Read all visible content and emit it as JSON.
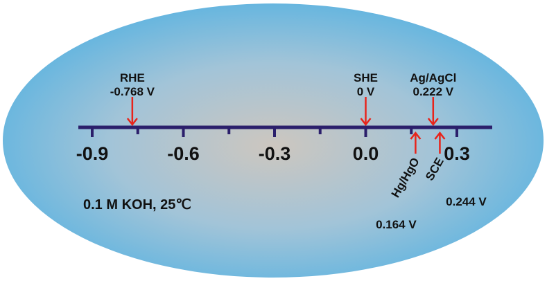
{
  "scale": {
    "ticks": [
      {
        "value": -0.9,
        "label": "-0.9"
      },
      {
        "value": -0.75,
        "label": ""
      },
      {
        "value": -0.6,
        "label": "-0.6"
      },
      {
        "value": -0.45,
        "label": ""
      },
      {
        "value": -0.3,
        "label": "-0.3"
      },
      {
        "value": -0.15,
        "label": ""
      },
      {
        "value": 0.0,
        "label": "0.0"
      },
      {
        "value": 0.15,
        "label": ""
      },
      {
        "value": 0.3,
        "label": "0.3"
      }
    ],
    "range": [
      -1.0,
      0.42
    ]
  },
  "references": [
    {
      "id": "rhe",
      "name": "RHE",
      "value_text": "-0.768 V",
      "value": -0.768,
      "side": "above"
    },
    {
      "id": "she",
      "name": "SHE",
      "value_text": "0 V",
      "value": 0.0,
      "side": "above"
    },
    {
      "id": "agcl",
      "name": "Ag/AgCl",
      "value_text": "0.222 V",
      "value": 0.222,
      "side": "above"
    },
    {
      "id": "hgo",
      "name": "Hg/HgO",
      "value_text": "0.164 V",
      "value": 0.164,
      "side": "below"
    },
    {
      "id": "sce",
      "name": "SCE",
      "value_text": "0.244 V",
      "value": 0.244,
      "side": "below"
    }
  ],
  "condition": "0.1 M KOH, 25℃",
  "colors": {
    "axis": "#2b1f6b",
    "arrow": "#e8231a",
    "ellipse_center": "#c9c3bc",
    "ellipse_edge": "#5fb4e0"
  }
}
